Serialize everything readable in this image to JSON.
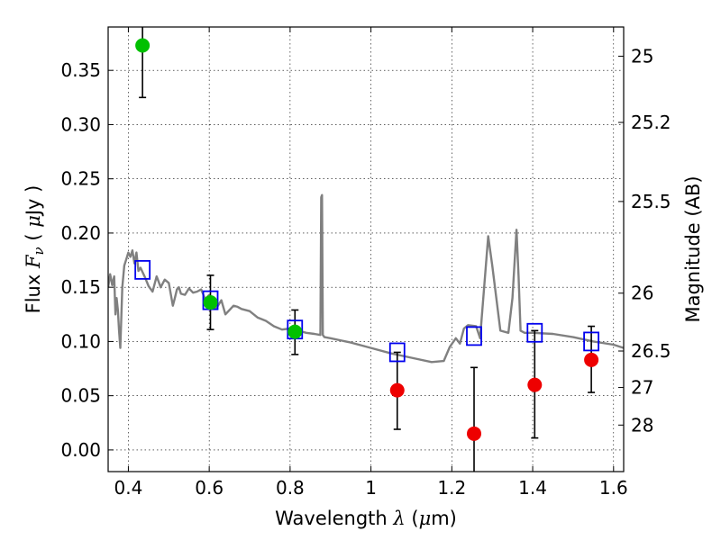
{
  "chart_data": {
    "type": "scatter",
    "title": "",
    "xlabel": {
      "prefix": "Wavelength  ",
      "symbol": "λ",
      "suffix": " (",
      "unit_symbol": "μ",
      "unit_suffix": "m)"
    },
    "ylabel": {
      "prefix": "Flux  ",
      "symbol": "F",
      "subscript": "ν",
      "middle": "  (  ",
      "unit_symbol": "μ",
      "unit_suffix": "Jy )"
    },
    "y2label": "Magnitude (AB)",
    "xlim": [
      0.35,
      1.625
    ],
    "ylim": [
      -0.02,
      0.39
    ],
    "x_ticks": [
      {
        "value": 0.4,
        "label": "0.4"
      },
      {
        "value": 0.6,
        "label": "0.6"
      },
      {
        "value": 0.8,
        "label": "0.8"
      },
      {
        "value": 1.0,
        "label": "1"
      },
      {
        "value": 1.2,
        "label": "1.2"
      },
      {
        "value": 1.4,
        "label": "1.4"
      },
      {
        "value": 1.6,
        "label": "1.6"
      }
    ],
    "y_ticks": [
      {
        "value": 0.0,
        "label": "0.00"
      },
      {
        "value": 0.05,
        "label": "0.05"
      },
      {
        "value": 0.1,
        "label": "0.10"
      },
      {
        "value": 0.15,
        "label": "0.15"
      },
      {
        "value": 0.2,
        "label": "0.20"
      },
      {
        "value": 0.25,
        "label": "0.25"
      },
      {
        "value": 0.3,
        "label": "0.30"
      },
      {
        "value": 0.35,
        "label": "0.35"
      }
    ],
    "y2_ticks": [
      {
        "value": 25,
        "label": "25"
      },
      {
        "value": 25.2,
        "label": "25.2"
      },
      {
        "value": 25.5,
        "label": "25.5"
      },
      {
        "value": 26,
        "label": "26"
      },
      {
        "value": 26.5,
        "label": "26.5"
      },
      {
        "value": 27,
        "label": "27"
      },
      {
        "value": 28,
        "label": "28"
      }
    ],
    "grid": true,
    "legend": "none",
    "series": [
      {
        "kind": "line",
        "color": "#808080",
        "x": [
          0.35,
          0.355,
          0.36,
          0.365,
          0.368,
          0.371,
          0.374,
          0.377,
          0.38,
          0.385,
          0.39,
          0.395,
          0.4,
          0.405,
          0.41,
          0.415,
          0.42,
          0.425,
          0.43,
          0.44,
          0.45,
          0.46,
          0.47,
          0.48,
          0.49,
          0.5,
          0.51,
          0.515,
          0.52,
          0.525,
          0.53,
          0.54,
          0.55,
          0.56,
          0.57,
          0.58,
          0.59,
          0.6,
          0.61,
          0.62,
          0.63,
          0.64,
          0.65,
          0.66,
          0.67,
          0.68,
          0.7,
          0.72,
          0.74,
          0.76,
          0.78,
          0.8,
          0.82,
          0.84,
          0.86,
          0.875,
          0.877,
          0.879,
          0.881,
          0.885,
          0.9,
          0.95,
          1.0,
          1.05,
          1.1,
          1.15,
          1.18,
          1.195,
          1.21,
          1.22,
          1.23,
          1.24,
          1.26,
          1.27,
          1.28,
          1.29,
          1.3,
          1.32,
          1.34,
          1.35,
          1.36,
          1.365,
          1.37,
          1.38,
          1.4,
          1.45,
          1.5,
          1.55,
          1.6,
          1.625
        ],
        "y": [
          0.15,
          0.162,
          0.152,
          0.16,
          0.125,
          0.14,
          0.129,
          0.11,
          0.094,
          0.15,
          0.17,
          0.176,
          0.182,
          0.178,
          0.184,
          0.172,
          0.182,
          0.165,
          0.168,
          0.16,
          0.151,
          0.146,
          0.16,
          0.15,
          0.157,
          0.154,
          0.133,
          0.14,
          0.148,
          0.15,
          0.144,
          0.143,
          0.149,
          0.145,
          0.146,
          0.148,
          0.139,
          0.143,
          0.13,
          0.132,
          0.138,
          0.125,
          0.129,
          0.133,
          0.132,
          0.13,
          0.128,
          0.122,
          0.119,
          0.114,
          0.111,
          0.112,
          0.11,
          0.108,
          0.107,
          0.106,
          0.233,
          0.235,
          0.106,
          0.104,
          0.103,
          0.099,
          0.094,
          0.089,
          0.085,
          0.081,
          0.082,
          0.095,
          0.103,
          0.098,
          0.112,
          0.115,
          0.114,
          0.103,
          0.15,
          0.197,
          0.17,
          0.11,
          0.108,
          0.14,
          0.203,
          0.16,
          0.11,
          0.108,
          0.108,
          0.107,
          0.104,
          0.1,
          0.097,
          0.094
        ]
      },
      {
        "kind": "square-marker",
        "color": "#0000ee",
        "x": [
          0.435,
          0.603,
          0.812,
          1.065,
          1.255,
          1.405,
          1.545
        ],
        "y": [
          0.166,
          0.138,
          0.111,
          0.09,
          0.105,
          0.108,
          0.1
        ]
      },
      {
        "kind": "circle-marker",
        "color": "#00c000",
        "x": [
          0.435,
          0.603,
          0.812
        ],
        "y": [
          0.373,
          0.136,
          0.109
        ],
        "err_lo": [
          0.325,
          0.111,
          0.088
        ],
        "err_hi": [
          0.4,
          0.161,
          0.129
        ]
      },
      {
        "kind": "circle-marker",
        "color": "#ee0000",
        "x": [
          1.065,
          1.255,
          1.405,
          1.545
        ],
        "y": [
          0.055,
          0.015,
          0.06,
          0.083
        ],
        "err_lo": [
          0.019,
          -0.025,
          0.011,
          0.053
        ],
        "err_hi": [
          0.09,
          0.076,
          0.11,
          0.114
        ]
      }
    ]
  }
}
